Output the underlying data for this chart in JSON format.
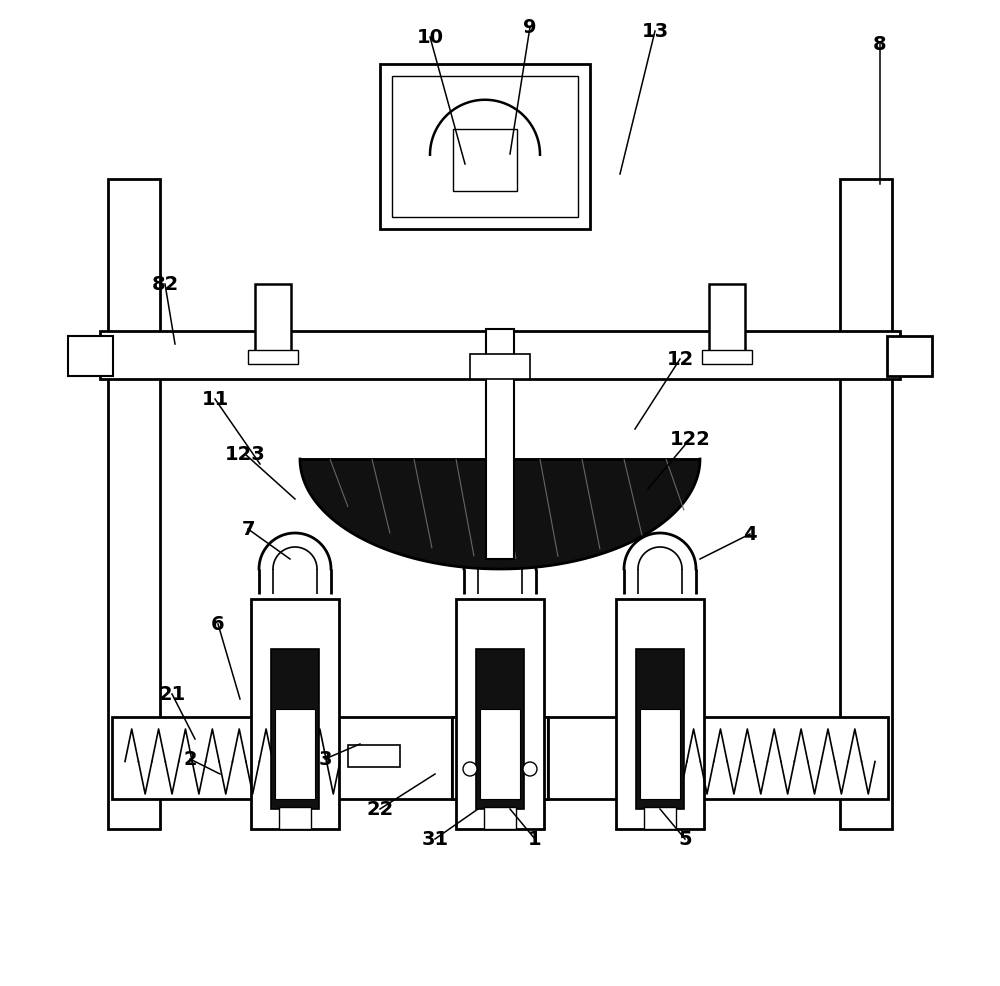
{
  "bg_color": "#ffffff",
  "line_color": "#000000",
  "dark_fill": "#111111",
  "fig_width": 10.0,
  "fig_height": 9.87
}
